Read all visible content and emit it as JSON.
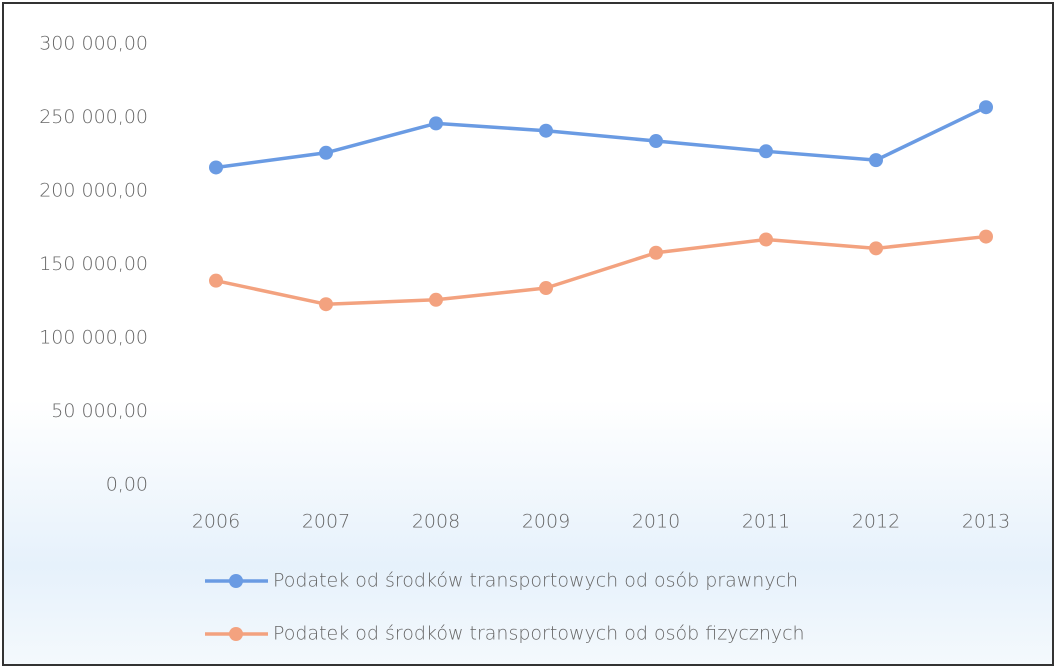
{
  "chart_data": {
    "type": "line",
    "categories": [
      "2006",
      "2007",
      "2008",
      "2009",
      "2010",
      "2011",
      "2012",
      "2013"
    ],
    "series": [
      {
        "name": "Podatek od środków transportowych od osób prawnych",
        "color": "#6a9be3",
        "values": [
          216000,
          226000,
          246000,
          241000,
          234000,
          227000,
          221000,
          257000
        ]
      },
      {
        "name": "Podatek od środków transportowych od osób fizycznych",
        "color": "#f3a27f",
        "values": [
          139000,
          123000,
          126000,
          134000,
          158000,
          167000,
          161000,
          169000
        ]
      }
    ],
    "ylim": [
      0,
      300000
    ],
    "yticks": [
      {
        "value": 0,
        "label": "0,00"
      },
      {
        "value": 50000,
        "label": "50 000,00"
      },
      {
        "value": 100000,
        "label": "100 000,00"
      },
      {
        "value": 150000,
        "label": "150 000,00"
      },
      {
        "value": 200000,
        "label": "200 000,00"
      },
      {
        "value": 250000,
        "label": "250 000,00"
      },
      {
        "value": 300000,
        "label": "300 000,00"
      }
    ],
    "grid": false,
    "legend": "bottom"
  }
}
